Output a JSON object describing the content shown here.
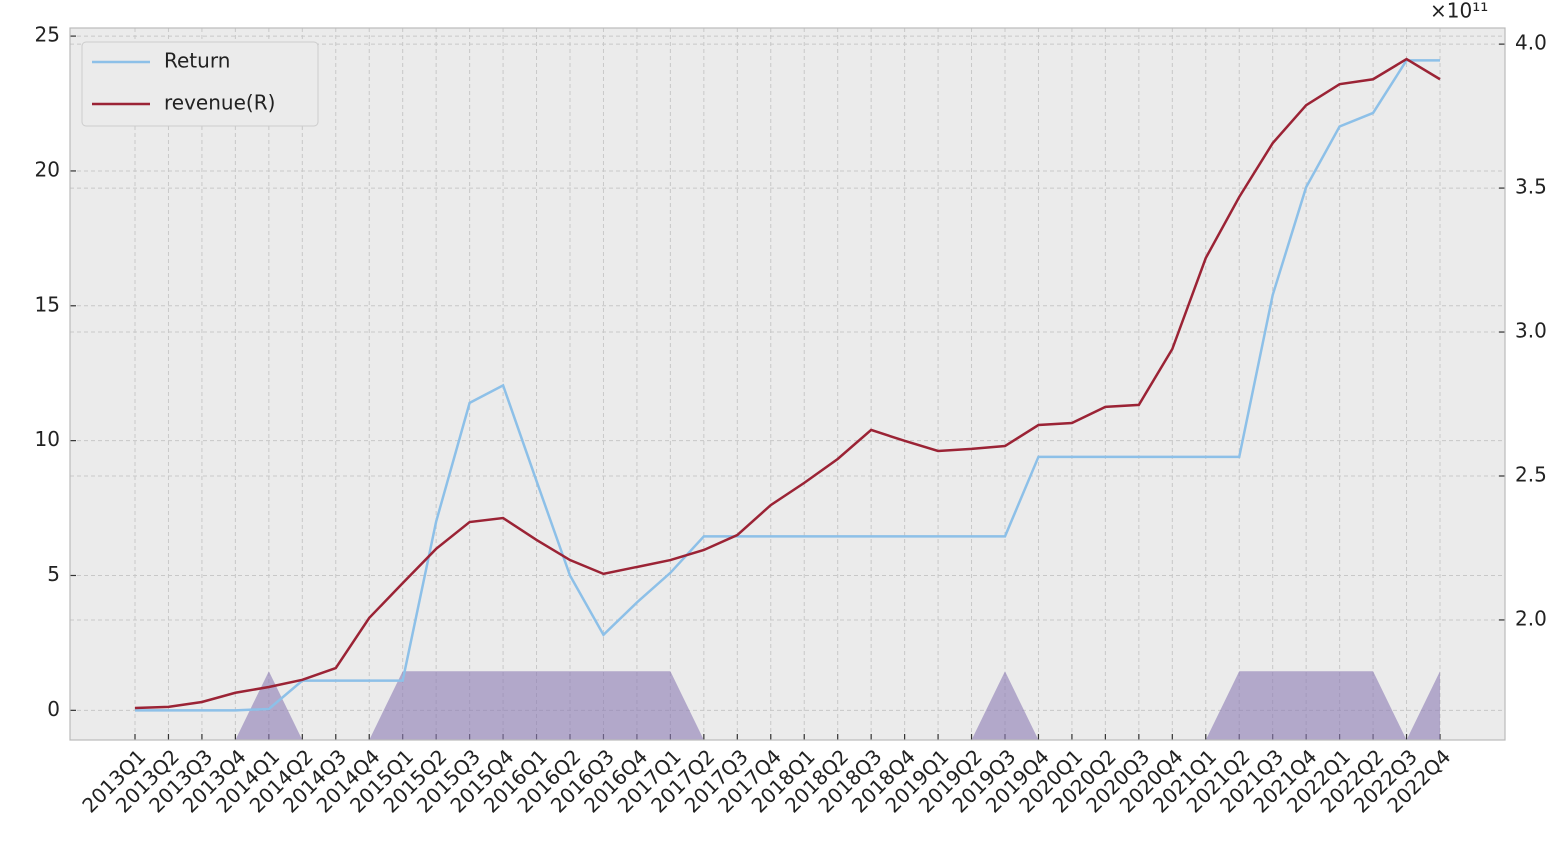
{
  "chart_data": {
    "type": "line",
    "categories": [
      "2013Q1",
      "2013Q2",
      "2013Q3",
      "2013Q4",
      "2014Q1",
      "2014Q2",
      "2014Q3",
      "2014Q4",
      "2015Q1",
      "2015Q2",
      "2015Q3",
      "2015Q4",
      "2016Q1",
      "2016Q2",
      "2016Q3",
      "2016Q4",
      "2017Q1",
      "2017Q2",
      "2017Q3",
      "2017Q4",
      "2018Q1",
      "2018Q2",
      "2018Q3",
      "2018Q4",
      "2019Q1",
      "2019Q2",
      "2019Q3",
      "2019Q4",
      "2020Q1",
      "2020Q2",
      "2020Q3",
      "2020Q4",
      "2021Q1",
      "2021Q2",
      "2021Q3",
      "2021Q4",
      "2022Q1",
      "2022Q2",
      "2022Q3",
      "2022Q4"
    ],
    "series": [
      {
        "name": "Return",
        "color": "#8dc0e8",
        "values": [
          0,
          0,
          0,
          0,
          0.05,
          1.1,
          1.1,
          1.1,
          1.1,
          7.0,
          11.4,
          12.05,
          8.5,
          5.0,
          2.8,
          4.0,
          5.1,
          6.45,
          6.45,
          6.45,
          6.45,
          6.45,
          6.45,
          6.45,
          6.45,
          6.45,
          6.45,
          9.4,
          9.4,
          9.4,
          9.4,
          9.4,
          9.4,
          9.4,
          15.4,
          19.4,
          21.65,
          22.15,
          24.1,
          24.1
        ]
      },
      {
        "name": "revenue(R)",
        "color": "#9b2335",
        "axis": "y2",
        "values": [
          169400000000,
          169800000000,
          171500000000,
          174700000000,
          176700000000,
          179200000000,
          183300000000,
          200700000000,
          212800000000,
          224700000000,
          234000000000,
          235400000000,
          227800000000,
          220800000000,
          216000000000,
          218400000000,
          220800000000,
          224300000000,
          229500000000,
          239900000000,
          247600000000,
          255900000000,
          266000000000,
          262200000000,
          258700000000,
          259400000000,
          260400000000,
          267700000000,
          268400000000,
          274000000000,
          274700000000,
          294100000000,
          325700000000,
          346900000000,
          365600000000,
          378800000000,
          386100000000,
          387800000000,
          394800000000,
          387800000000
        ]
      },
      {
        "type": "area",
        "color": "#8c7cb4",
        "values": [
          -1.1,
          -1.1,
          -1.1,
          -1.1,
          1.45,
          -1.1,
          -1.1,
          -1.1,
          1.45,
          1.45,
          1.45,
          1.45,
          1.45,
          1.45,
          1.45,
          1.45,
          1.45,
          -1.1,
          -1.1,
          -1.1,
          -1.1,
          -1.1,
          -1.1,
          -1.1,
          -1.1,
          -1.1,
          1.45,
          -1.1,
          -1.1,
          -1.1,
          -1.1,
          -1.1,
          -1.1,
          1.45,
          1.45,
          1.45,
          1.45,
          1.45,
          -1.1,
          1.45
        ]
      }
    ],
    "ylim": [
      -1.1,
      25.3
    ],
    "yticks": [
      0,
      5,
      10,
      15,
      20,
      25
    ],
    "y2lim": [
      158300000000,
      405600000000
    ],
    "y2ticks": [
      {
        "value": 200000000000,
        "label": "2.0"
      },
      {
        "value": 250000000000,
        "label": "2.5"
      },
      {
        "value": 300000000000,
        "label": "3.0"
      },
      {
        "value": 350000000000,
        "label": "3.5"
      },
      {
        "value": 400000000000,
        "label": "4.0"
      }
    ],
    "y2_offset": "×10¹¹",
    "grid": true,
    "legend": "upper left"
  }
}
